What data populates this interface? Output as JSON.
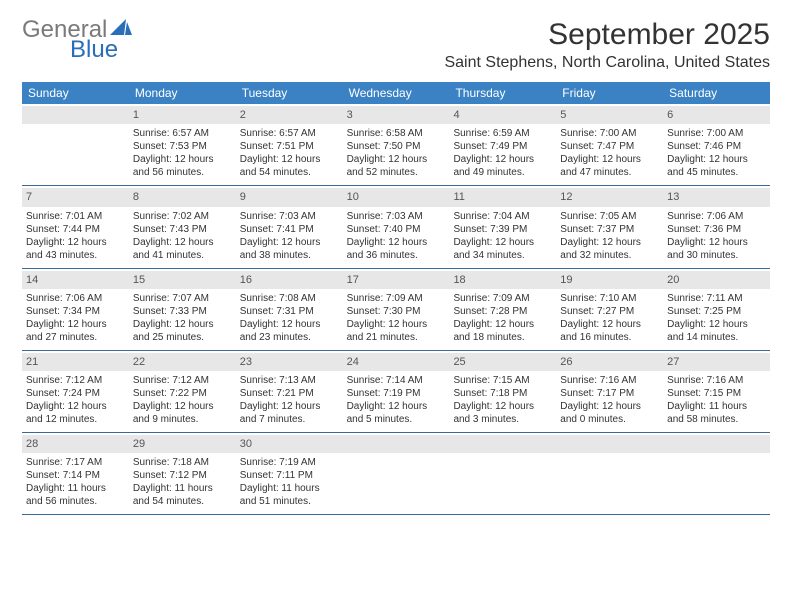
{
  "logo": {
    "text_gray": "General",
    "text_blue": "Blue",
    "shape_color": "#2a6db8"
  },
  "header": {
    "month_title": "September 2025",
    "location": "Saint Stephens, North Carolina, United States"
  },
  "colors": {
    "header_bg": "#3a82c4",
    "header_text": "#ffffff",
    "daynum_bg": "#e7e7e7",
    "border": "#3a6a9a"
  },
  "day_names": [
    "Sunday",
    "Monday",
    "Tuesday",
    "Wednesday",
    "Thursday",
    "Friday",
    "Saturday"
  ],
  "weeks": [
    [
      {
        "n": "",
        "sr": "",
        "ss": "",
        "dl": ""
      },
      {
        "n": "1",
        "sr": "6:57 AM",
        "ss": "7:53 PM",
        "dl": "12 hours and 56 minutes."
      },
      {
        "n": "2",
        "sr": "6:57 AM",
        "ss": "7:51 PM",
        "dl": "12 hours and 54 minutes."
      },
      {
        "n": "3",
        "sr": "6:58 AM",
        "ss": "7:50 PM",
        "dl": "12 hours and 52 minutes."
      },
      {
        "n": "4",
        "sr": "6:59 AM",
        "ss": "7:49 PM",
        "dl": "12 hours and 49 minutes."
      },
      {
        "n": "5",
        "sr": "7:00 AM",
        "ss": "7:47 PM",
        "dl": "12 hours and 47 minutes."
      },
      {
        "n": "6",
        "sr": "7:00 AM",
        "ss": "7:46 PM",
        "dl": "12 hours and 45 minutes."
      }
    ],
    [
      {
        "n": "7",
        "sr": "7:01 AM",
        "ss": "7:44 PM",
        "dl": "12 hours and 43 minutes."
      },
      {
        "n": "8",
        "sr": "7:02 AM",
        "ss": "7:43 PM",
        "dl": "12 hours and 41 minutes."
      },
      {
        "n": "9",
        "sr": "7:03 AM",
        "ss": "7:41 PM",
        "dl": "12 hours and 38 minutes."
      },
      {
        "n": "10",
        "sr": "7:03 AM",
        "ss": "7:40 PM",
        "dl": "12 hours and 36 minutes."
      },
      {
        "n": "11",
        "sr": "7:04 AM",
        "ss": "7:39 PM",
        "dl": "12 hours and 34 minutes."
      },
      {
        "n": "12",
        "sr": "7:05 AM",
        "ss": "7:37 PM",
        "dl": "12 hours and 32 minutes."
      },
      {
        "n": "13",
        "sr": "7:06 AM",
        "ss": "7:36 PM",
        "dl": "12 hours and 30 minutes."
      }
    ],
    [
      {
        "n": "14",
        "sr": "7:06 AM",
        "ss": "7:34 PM",
        "dl": "12 hours and 27 minutes."
      },
      {
        "n": "15",
        "sr": "7:07 AM",
        "ss": "7:33 PM",
        "dl": "12 hours and 25 minutes."
      },
      {
        "n": "16",
        "sr": "7:08 AM",
        "ss": "7:31 PM",
        "dl": "12 hours and 23 minutes."
      },
      {
        "n": "17",
        "sr": "7:09 AM",
        "ss": "7:30 PM",
        "dl": "12 hours and 21 minutes."
      },
      {
        "n": "18",
        "sr": "7:09 AM",
        "ss": "7:28 PM",
        "dl": "12 hours and 18 minutes."
      },
      {
        "n": "19",
        "sr": "7:10 AM",
        "ss": "7:27 PM",
        "dl": "12 hours and 16 minutes."
      },
      {
        "n": "20",
        "sr": "7:11 AM",
        "ss": "7:25 PM",
        "dl": "12 hours and 14 minutes."
      }
    ],
    [
      {
        "n": "21",
        "sr": "7:12 AM",
        "ss": "7:24 PM",
        "dl": "12 hours and 12 minutes."
      },
      {
        "n": "22",
        "sr": "7:12 AM",
        "ss": "7:22 PM",
        "dl": "12 hours and 9 minutes."
      },
      {
        "n": "23",
        "sr": "7:13 AM",
        "ss": "7:21 PM",
        "dl": "12 hours and 7 minutes."
      },
      {
        "n": "24",
        "sr": "7:14 AM",
        "ss": "7:19 PM",
        "dl": "12 hours and 5 minutes."
      },
      {
        "n": "25",
        "sr": "7:15 AM",
        "ss": "7:18 PM",
        "dl": "12 hours and 3 minutes."
      },
      {
        "n": "26",
        "sr": "7:16 AM",
        "ss": "7:17 PM",
        "dl": "12 hours and 0 minutes."
      },
      {
        "n": "27",
        "sr": "7:16 AM",
        "ss": "7:15 PM",
        "dl": "11 hours and 58 minutes."
      }
    ],
    [
      {
        "n": "28",
        "sr": "7:17 AM",
        "ss": "7:14 PM",
        "dl": "11 hours and 56 minutes."
      },
      {
        "n": "29",
        "sr": "7:18 AM",
        "ss": "7:12 PM",
        "dl": "11 hours and 54 minutes."
      },
      {
        "n": "30",
        "sr": "7:19 AM",
        "ss": "7:11 PM",
        "dl": "11 hours and 51 minutes."
      },
      {
        "n": "",
        "sr": "",
        "ss": "",
        "dl": ""
      },
      {
        "n": "",
        "sr": "",
        "ss": "",
        "dl": ""
      },
      {
        "n": "",
        "sr": "",
        "ss": "",
        "dl": ""
      },
      {
        "n": "",
        "sr": "",
        "ss": "",
        "dl": ""
      }
    ]
  ],
  "labels": {
    "sunrise_prefix": "Sunrise: ",
    "sunset_prefix": "Sunset: ",
    "daylight_prefix": "Daylight: "
  }
}
